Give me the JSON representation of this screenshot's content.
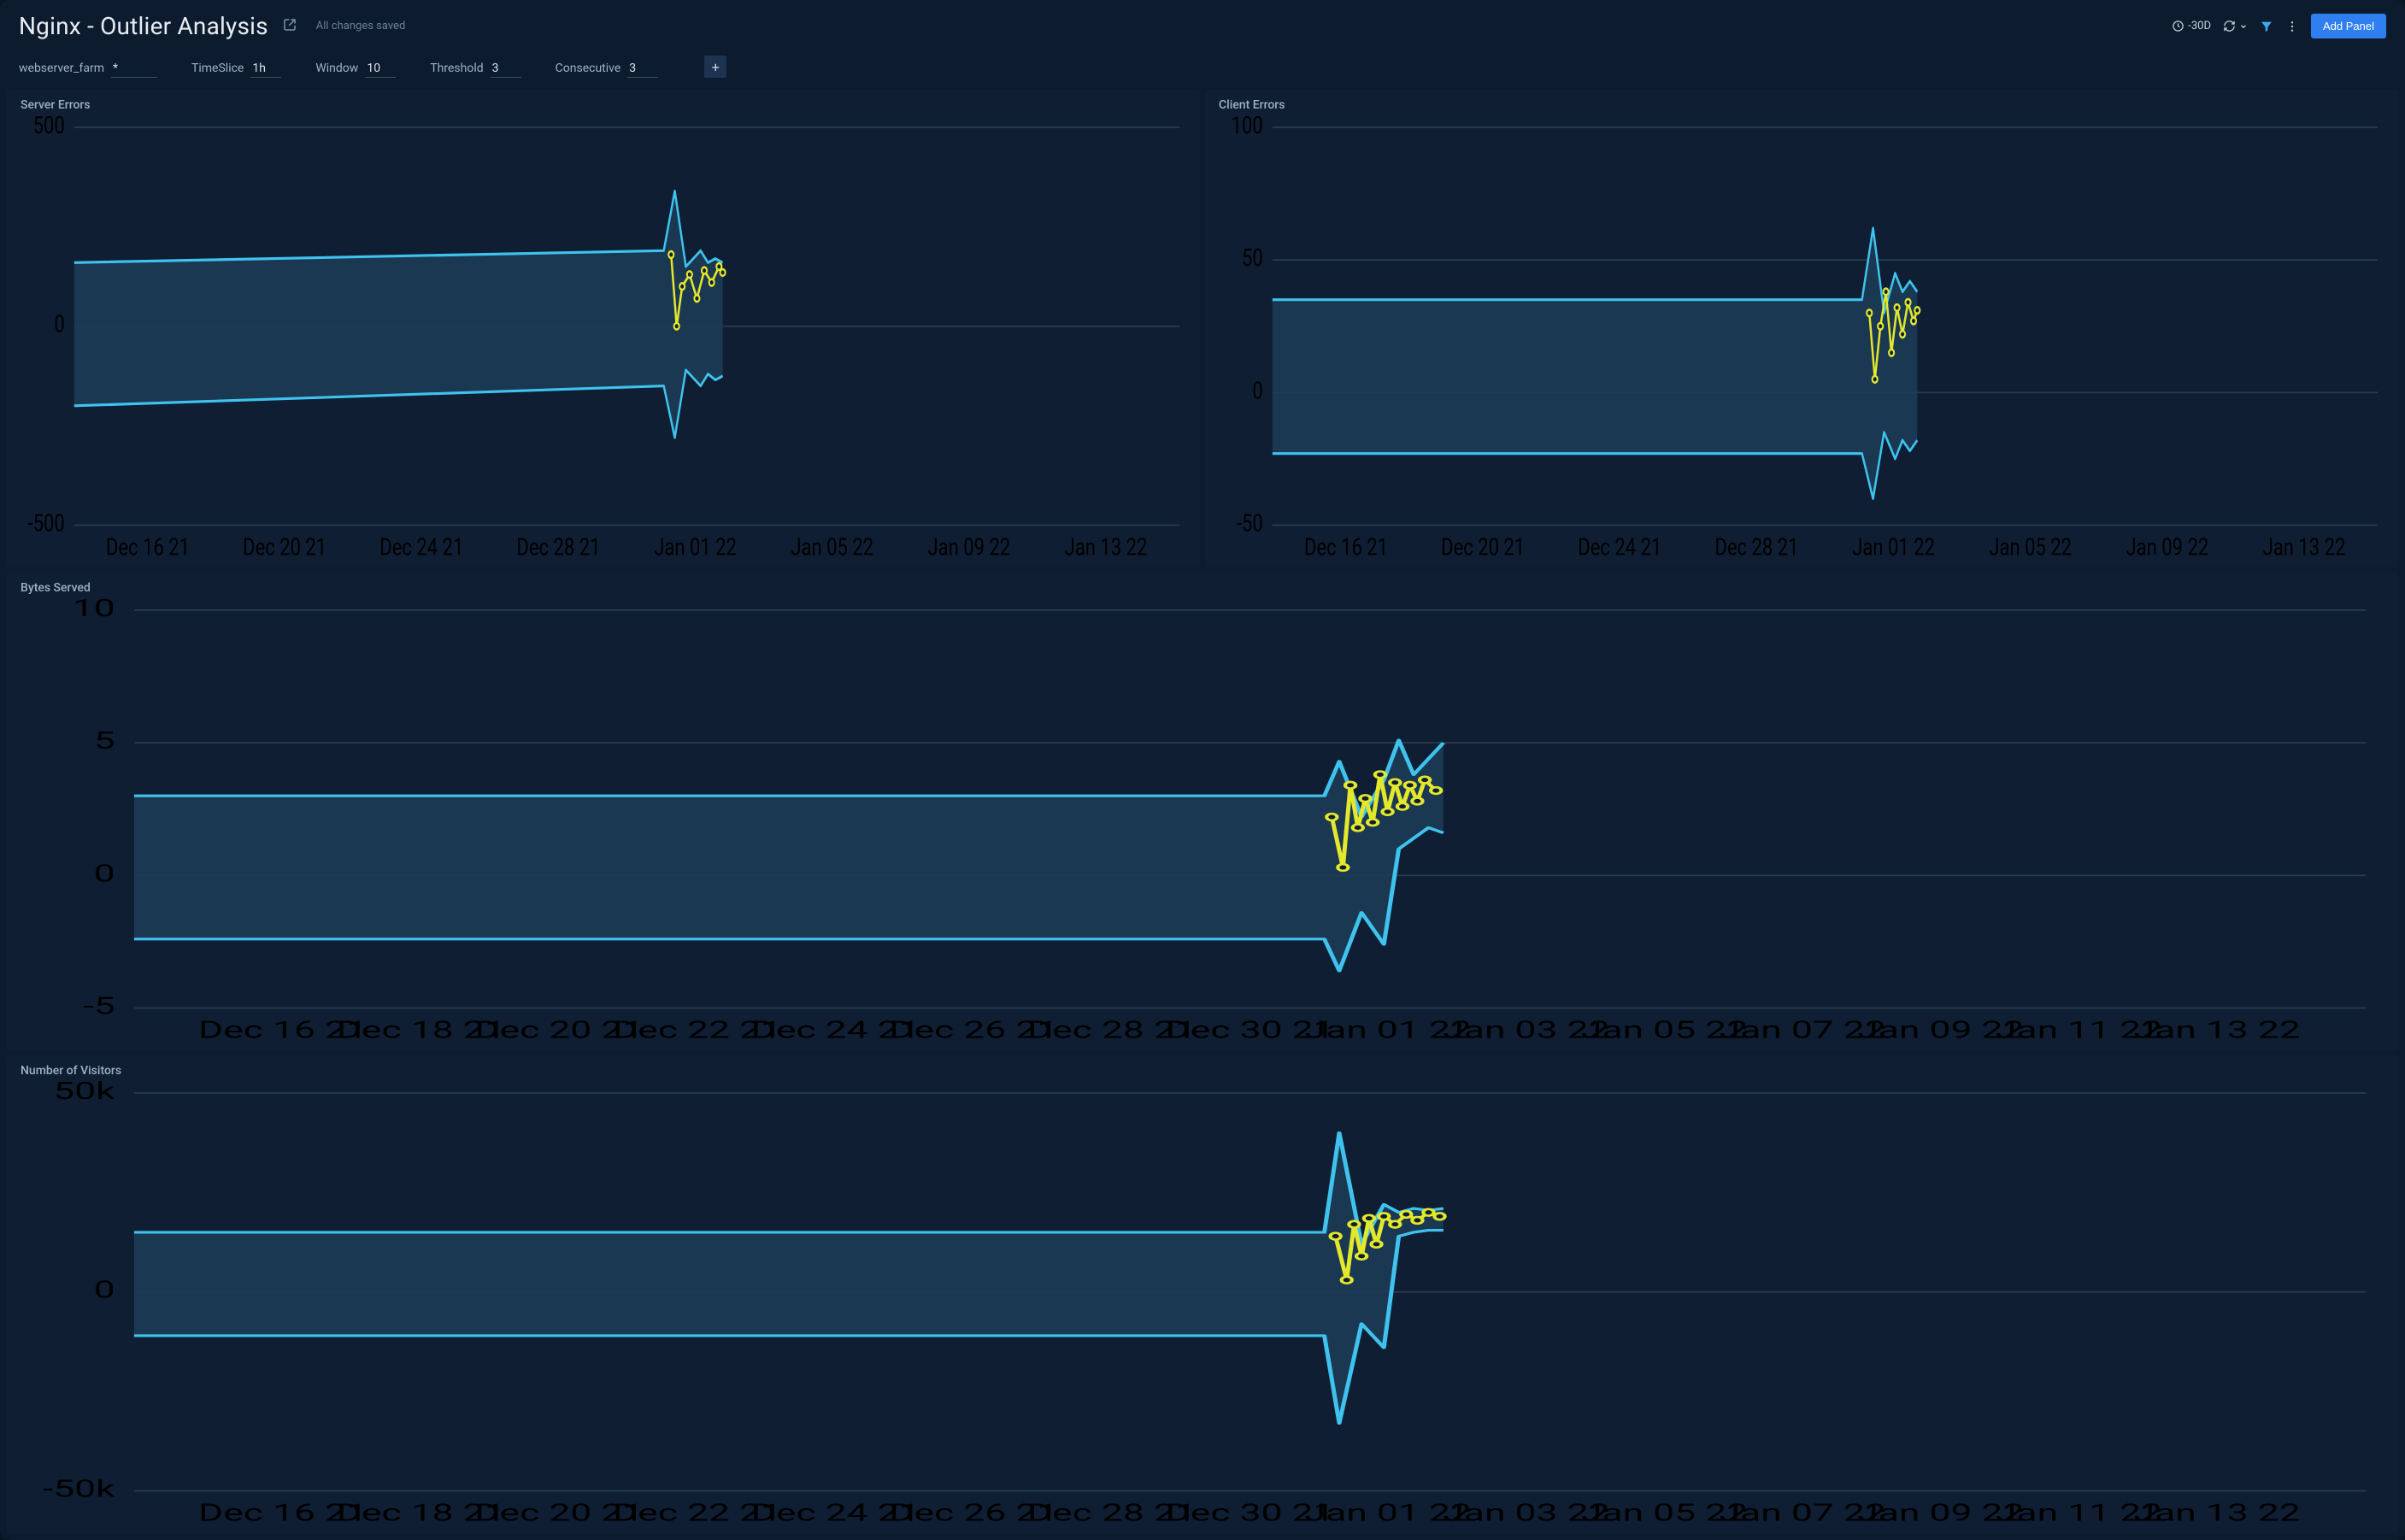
{
  "page_title": "Nginx - Outlier Analysis",
  "save_status": "All changes saved",
  "time_range_label": "-30D",
  "add_panel_label": "Add Panel",
  "colors": {
    "band_fill": "#1d3b55",
    "band_edge": "#3fc3ee",
    "outlier": "#e3e82d",
    "grid": "#2a3a52",
    "axis_text": "#7f92ab",
    "panel_bg": "#0f1e33"
  },
  "filters": [
    {
      "label": "webserver_farm",
      "value": "*"
    },
    {
      "label": "TimeSlice",
      "value": "1h"
    },
    {
      "label": "Window",
      "value": "10"
    },
    {
      "label": "Threshold",
      "value": "3"
    },
    {
      "label": "Consecutive",
      "value": "3"
    }
  ],
  "x_labels_half": [
    "Dec 16 21",
    "Dec 20 21",
    "Dec 24 21",
    "Dec 28 21",
    "Jan 01 22",
    "Jan 05 22",
    "Jan 09 22",
    "Jan 13 22"
  ],
  "x_labels_full": [
    "Dec 16 21",
    "Dec 18 21",
    "Dec 20 21",
    "Dec 22 21",
    "Dec 24 21",
    "Dec 26 21",
    "Dec 28 21",
    "Dec 30 21",
    "Jan 01 22",
    "Jan 03 22",
    "Jan 05 22",
    "Jan 07 22",
    "Jan 09 22",
    "Jan 11 22",
    "Jan 13 22"
  ],
  "panels": [
    {
      "id": "server_errors",
      "title": "Server Errors",
      "span": 1,
      "y": {
        "min": -500,
        "max": 500,
        "ticks": [
          -500,
          0,
          500
        ]
      },
      "x_domain": [
        0,
        30
      ],
      "x_labels": "half",
      "band_upper": [
        [
          0,
          160
        ],
        [
          16,
          190
        ],
        [
          16.3,
          340
        ],
        [
          16.6,
          150
        ],
        [
          17,
          190
        ],
        [
          17.2,
          160
        ],
        [
          17.4,
          170
        ],
        [
          17.6,
          160
        ]
      ],
      "band_lower": [
        [
          0,
          -200
        ],
        [
          16,
          -150
        ],
        [
          16.3,
          -280
        ],
        [
          16.6,
          -110
        ],
        [
          17,
          -150
        ],
        [
          17.2,
          -120
        ],
        [
          17.4,
          -135
        ],
        [
          17.6,
          -125
        ]
      ],
      "outlier": [
        [
          16.2,
          180
        ],
        [
          16.35,
          0
        ],
        [
          16.5,
          100
        ],
        [
          16.7,
          130
        ],
        [
          16.9,
          70
        ],
        [
          17.1,
          140
        ],
        [
          17.3,
          110
        ],
        [
          17.5,
          150
        ],
        [
          17.6,
          135
        ]
      ]
    },
    {
      "id": "client_errors",
      "title": "Client Errors",
      "span": 1,
      "y": {
        "min": -50,
        "max": 100,
        "ticks": [
          -50,
          0,
          50,
          100
        ]
      },
      "x_domain": [
        0,
        30
      ],
      "x_labels": "half",
      "band_upper": [
        [
          0,
          35
        ],
        [
          16,
          35
        ],
        [
          16.3,
          62
        ],
        [
          16.6,
          30
        ],
        [
          16.9,
          45
        ],
        [
          17.1,
          38
        ],
        [
          17.3,
          42
        ],
        [
          17.5,
          38
        ]
      ],
      "band_lower": [
        [
          0,
          -23
        ],
        [
          16,
          -23
        ],
        [
          16.3,
          -40
        ],
        [
          16.6,
          -15
        ],
        [
          16.9,
          -25
        ],
        [
          17.1,
          -18
        ],
        [
          17.3,
          -22
        ],
        [
          17.5,
          -18
        ]
      ],
      "outlier": [
        [
          16.2,
          30
        ],
        [
          16.35,
          5
        ],
        [
          16.5,
          25
        ],
        [
          16.65,
          38
        ],
        [
          16.8,
          15
        ],
        [
          16.95,
          32
        ],
        [
          17.1,
          22
        ],
        [
          17.25,
          34
        ],
        [
          17.4,
          27
        ],
        [
          17.5,
          31
        ]
      ]
    },
    {
      "id": "bytes_served",
      "title": "Bytes Served",
      "span": 2,
      "y": {
        "min": -5,
        "max": 10,
        "ticks": [
          -5,
          0,
          5,
          10
        ]
      },
      "x_domain": [
        0,
        30
      ],
      "x_labels": "full",
      "band_upper": [
        [
          0,
          3.0
        ],
        [
          16,
          3.0
        ],
        [
          16.2,
          4.3
        ],
        [
          16.5,
          2.2
        ],
        [
          16.8,
          3.6
        ],
        [
          17.0,
          5.1
        ],
        [
          17.2,
          3.8
        ],
        [
          17.4,
          4.4
        ],
        [
          17.6,
          5.0
        ]
      ],
      "band_lower": [
        [
          0,
          -2.4
        ],
        [
          16,
          -2.4
        ],
        [
          16.2,
          -3.6
        ],
        [
          16.5,
          -1.4
        ],
        [
          16.8,
          -2.6
        ],
        [
          17.0,
          1.0
        ],
        [
          17.2,
          1.4
        ],
        [
          17.4,
          1.8
        ],
        [
          17.6,
          1.6
        ]
      ],
      "outlier": [
        [
          16.1,
          2.2
        ],
        [
          16.25,
          0.3
        ],
        [
          16.35,
          3.4
        ],
        [
          16.45,
          1.8
        ],
        [
          16.55,
          2.9
        ],
        [
          16.65,
          2.0
        ],
        [
          16.75,
          3.8
        ],
        [
          16.85,
          2.4
        ],
        [
          16.95,
          3.5
        ],
        [
          17.05,
          2.6
        ],
        [
          17.15,
          3.4
        ],
        [
          17.25,
          2.8
        ],
        [
          17.35,
          3.6
        ],
        [
          17.5,
          3.2
        ]
      ]
    },
    {
      "id": "visitors",
      "title": "Number of Visitors",
      "span": 2,
      "y": {
        "min": -50000,
        "max": 50000,
        "ticks": [
          -50000,
          0,
          50000
        ],
        "tick_labels": [
          "-50k",
          "0",
          "50k"
        ]
      },
      "x_domain": [
        0,
        30
      ],
      "x_labels": "full",
      "band_upper": [
        [
          0,
          15000
        ],
        [
          16,
          15000
        ],
        [
          16.2,
          40000
        ],
        [
          16.5,
          12000
        ],
        [
          16.8,
          22000
        ],
        [
          17.0,
          20000
        ],
        [
          17.2,
          21000
        ],
        [
          17.4,
          20500
        ],
        [
          17.6,
          21000
        ]
      ],
      "band_lower": [
        [
          0,
          -11000
        ],
        [
          16,
          -11000
        ],
        [
          16.2,
          -33000
        ],
        [
          16.5,
          -8000
        ],
        [
          16.8,
          -14000
        ],
        [
          17.0,
          14000
        ],
        [
          17.2,
          15000
        ],
        [
          17.4,
          15500
        ],
        [
          17.6,
          15500
        ]
      ],
      "outlier": [
        [
          16.15,
          14000
        ],
        [
          16.3,
          3000
        ],
        [
          16.4,
          17000
        ],
        [
          16.5,
          9000
        ],
        [
          16.6,
          18500
        ],
        [
          16.7,
          12000
        ],
        [
          16.8,
          19000
        ],
        [
          16.95,
          17000
        ],
        [
          17.1,
          19500
        ],
        [
          17.25,
          18000
        ],
        [
          17.4,
          20000
        ],
        [
          17.55,
          19000
        ]
      ]
    }
  ]
}
